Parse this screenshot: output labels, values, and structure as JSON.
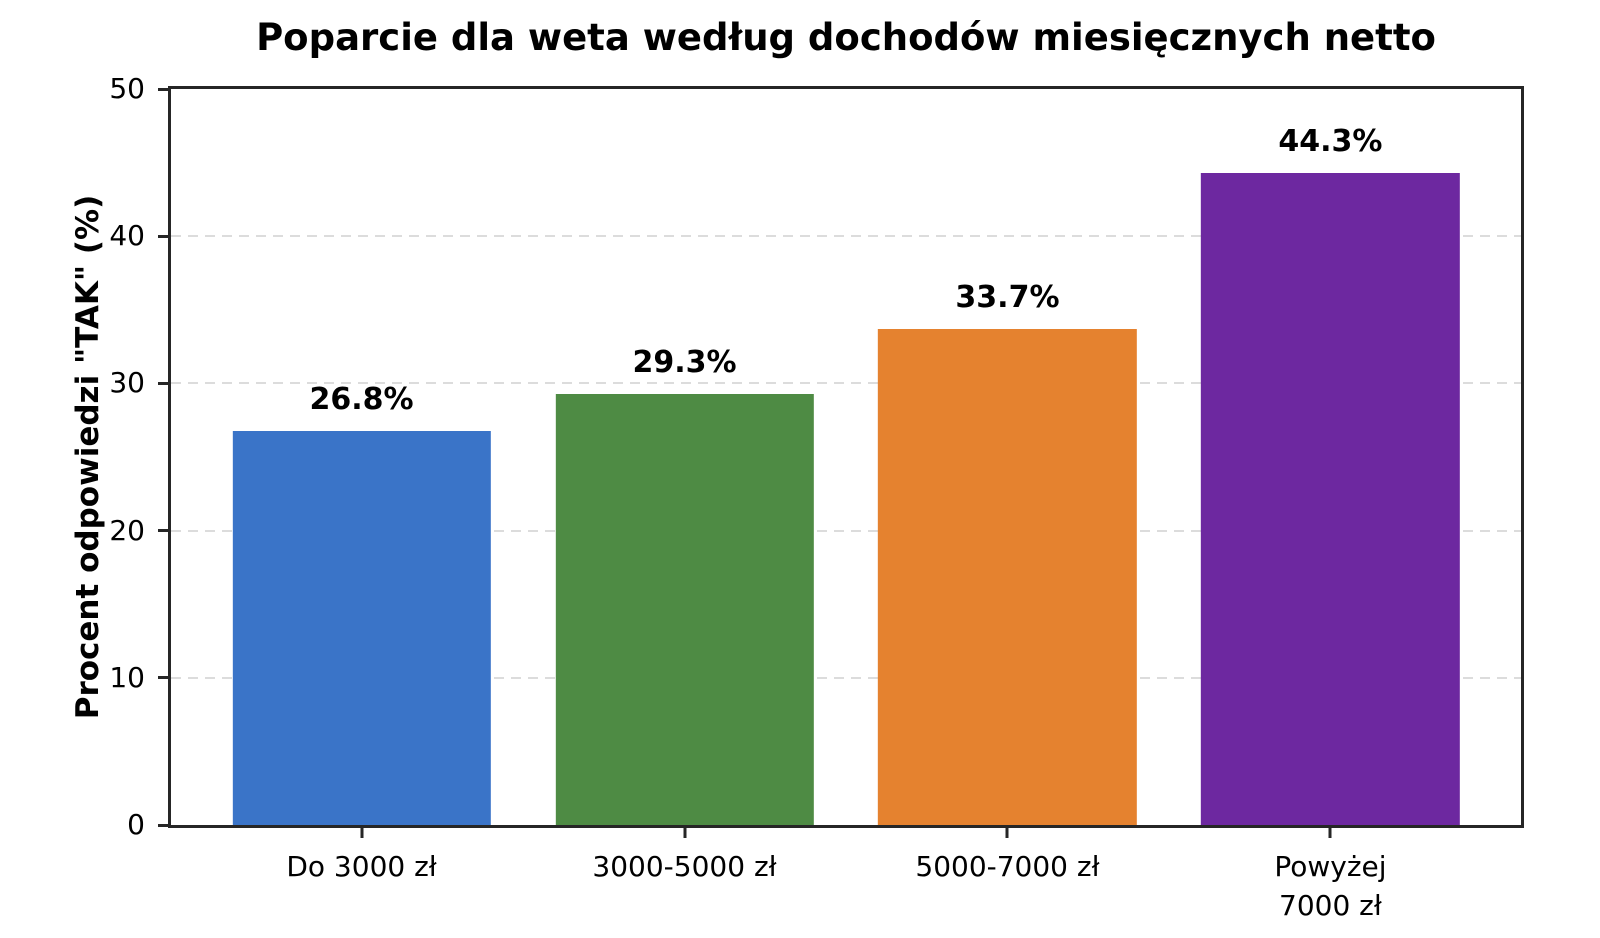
{
  "chart_data": {
    "type": "bar",
    "title": "Poparcie dla weta według dochodów miesięcznych netto",
    "ylabel": "Procent odpowiedzi \"TAK\" (%)",
    "xlabel": "",
    "categories": [
      "Do 3000 zł",
      "3000-5000 zł",
      "5000-7000 zł",
      "Powyżej\n7000 zł"
    ],
    "values": [
      26.8,
      29.3,
      33.7,
      44.3
    ],
    "bar_labels": [
      "26.8%",
      "29.3%",
      "33.7%",
      "44.3%"
    ],
    "bar_colors": [
      "#3a74c8",
      "#4e8b44",
      "#e5822f",
      "#6d28a0"
    ],
    "ylim": [
      0,
      50
    ],
    "yticks": [
      0,
      10,
      20,
      30,
      40,
      50
    ],
    "grid": "horizontal-dashed",
    "legend": "none",
    "colors": {
      "background": "#ffffff",
      "spine": "#262626",
      "grid": "#dcdcdc",
      "text": "#000000"
    }
  }
}
